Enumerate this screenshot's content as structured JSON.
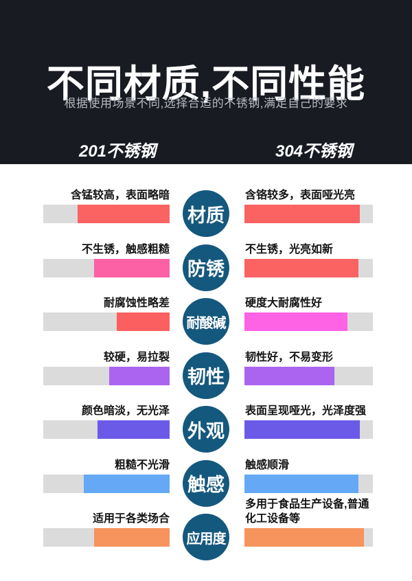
{
  "header": {
    "title": "不同材质,不同性能",
    "subtitle": "根据使用场景不同,选择合适的不锈钢,满足自己的要求",
    "left_column": "201不锈钢",
    "right_column": "304不锈钢"
  },
  "colors": {
    "header_bg": "#181b22",
    "subtitle_text": "#b7bac1",
    "circle": "#15587e",
    "track": "#dbdbdb",
    "label_text": "#141414"
  },
  "rows": [
    {
      "category": "材质",
      "left": {
        "label": "含锰较高，表面略暗",
        "color": "#fb6262",
        "value_pct": 73
      },
      "right": {
        "label": "含铬较多，表面哑光亮",
        "color": "#fb6262",
        "value_pct": 90
      }
    },
    {
      "category": "防锈",
      "left": {
        "label": "不生锈，触感粗糙",
        "color": "#fc61a5",
        "value_pct": 60
      },
      "right": {
        "label": "不生锈，光亮如新",
        "color": "#fb6262",
        "value_pct": 89
      }
    },
    {
      "category": "耐酸碱",
      "left": {
        "label": "耐腐蚀性略差",
        "color": "#fb5f5f",
        "value_pct": 42
      },
      "right": {
        "label": "硬度大耐腐性好",
        "color": "#fe63e6",
        "value_pct": 80
      }
    },
    {
      "category": "韧性",
      "left": {
        "label": "较硬，易拉裂",
        "color": "#aa64f0",
        "value_pct": 48
      },
      "right": {
        "label": "韧性好，不易变形",
        "color": "#aa64f0",
        "value_pct": 70
      }
    },
    {
      "category": "外观",
      "left": {
        "label": "颜色暗淡，无光泽",
        "color": "#6b5ae8",
        "value_pct": 57
      },
      "right": {
        "label": "表面呈现哑光，光泽度强",
        "color": "#6b5ae8",
        "value_pct": 90
      }
    },
    {
      "category": "触感",
      "left": {
        "label": "粗糙不光滑",
        "color": "#64a8f6",
        "value_pct": 68
      },
      "right": {
        "label": "触感顺滑",
        "color": "#64a8f6",
        "value_pct": 89
      }
    },
    {
      "category": "应用度",
      "left": {
        "label": "适用于各类场合",
        "color": "#f7935d",
        "value_pct": 60
      },
      "right": {
        "label": "多用于食品生产设备,普通\n化工设备等",
        "color": "#f7935d",
        "value_pct": 93
      }
    }
  ]
}
